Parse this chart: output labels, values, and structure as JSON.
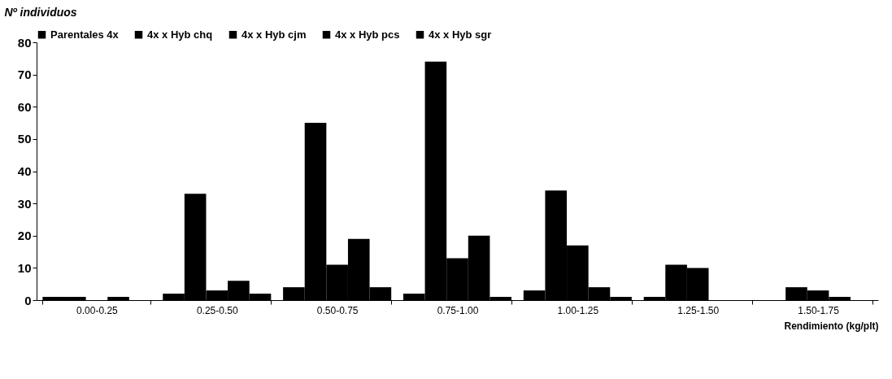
{
  "chart_data": {
    "type": "bar",
    "xlabel": "Rendimiento (kg/plt)",
    "ylabel": "Nº individuos",
    "categories": [
      "0.00-0.25",
      "0.25-0.50",
      "0.50-0.75",
      "0.75-1.00",
      "1.00-1.25",
      "1.25-1.50",
      "1.50-1.75"
    ],
    "series": [
      {
        "name": "Parentales 4x",
        "color": "#000000",
        "values": [
          1,
          2,
          4,
          2,
          3,
          1,
          0
        ]
      },
      {
        "name": "4x x Hyb chq",
        "color": "#000000",
        "values": [
          1,
          33,
          55,
          74,
          34,
          11,
          4
        ]
      },
      {
        "name": "4x x Hyb cjm",
        "color": "#000000",
        "values": [
          0,
          3,
          11,
          13,
          17,
          10,
          3
        ]
      },
      {
        "name": "4x x Hyb pcs",
        "color": "#000000",
        "values": [
          1,
          6,
          19,
          20,
          4,
          0,
          1
        ]
      },
      {
        "name": "4x x Hyb sgr",
        "color": "#000000",
        "values": [
          0,
          2,
          4,
          1,
          1,
          0,
          0
        ]
      }
    ],
    "ylim": [
      0,
      80
    ],
    "yticks": [
      0,
      10,
      20,
      30,
      40,
      50,
      60,
      70,
      80
    ],
    "grid": false,
    "legend": "top"
  }
}
